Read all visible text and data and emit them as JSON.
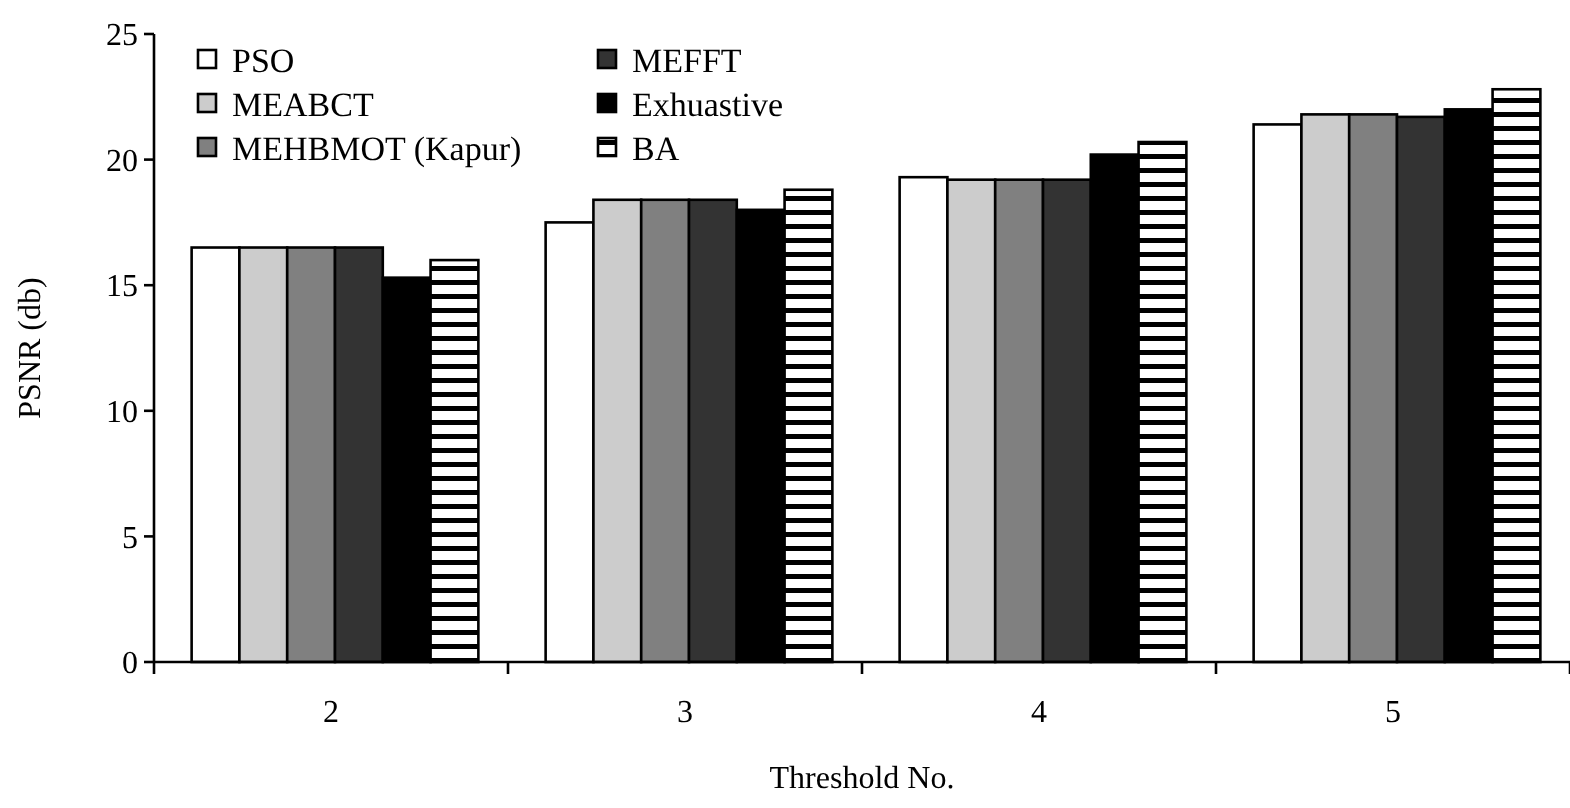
{
  "chart_data": {
    "type": "bar",
    "xlabel": "Threshold No.",
    "ylabel": "PSNR (db)",
    "categories": [
      "2",
      "3",
      "4",
      "5"
    ],
    "ylim": [
      0,
      25
    ],
    "yticks": [
      0,
      5,
      10,
      15,
      20,
      25
    ],
    "grid": false,
    "legend": "top left",
    "series": [
      {
        "name": "PSO",
        "color": "#ffffff",
        "values": [
          16.5,
          17.5,
          19.3,
          21.4
        ]
      },
      {
        "name": "MEABCT",
        "color": "#cccccc",
        "values": [
          16.5,
          18.4,
          19.2,
          21.8
        ]
      },
      {
        "name": "MEHBMOT (Kapur)",
        "color": "#808080",
        "values": [
          16.5,
          18.4,
          19.2,
          21.8
        ]
      },
      {
        "name": "MEFFT",
        "color": "#333333",
        "values": [
          16.5,
          18.4,
          19.2,
          21.7
        ]
      },
      {
        "name": "Exhuastive",
        "color": "#000000",
        "values": [
          15.3,
          18.0,
          20.2,
          22.0
        ]
      },
      {
        "name": "BA",
        "color": "#000000",
        "values": [
          16.0,
          18.8,
          20.7,
          22.8
        ]
      }
    ]
  }
}
